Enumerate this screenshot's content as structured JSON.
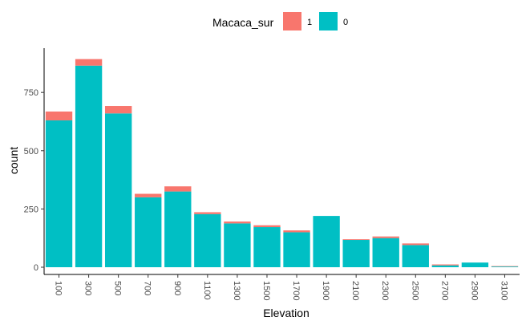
{
  "chart_data": {
    "type": "bar",
    "stacked": true,
    "categories": [
      "100",
      "300",
      "500",
      "700",
      "900",
      "1100",
      "1300",
      "1500",
      "1700",
      "1900",
      "2100",
      "2300",
      "2500",
      "2700",
      "2900",
      "3100"
    ],
    "series": [
      {
        "name": "0",
        "color": "#00BFC4",
        "values": [
          630,
          865,
          660,
          300,
          325,
          228,
          188,
          172,
          150,
          220,
          117,
          125,
          95,
          8,
          20,
          3
        ]
      },
      {
        "name": "1",
        "color": "#F8766D",
        "values": [
          38,
          28,
          32,
          15,
          22,
          8,
          8,
          8,
          8,
          0,
          3,
          7,
          7,
          4,
          0,
          2
        ]
      }
    ],
    "xlabel": "Elevation",
    "ylabel": "count",
    "y_ticks": [
      0,
      250,
      500,
      750
    ],
    "ylim": [
      -31,
      940
    ],
    "legend": {
      "title": "Macaca_sur",
      "position": "top",
      "order": [
        "1",
        "0"
      ]
    },
    "grid": false
  }
}
